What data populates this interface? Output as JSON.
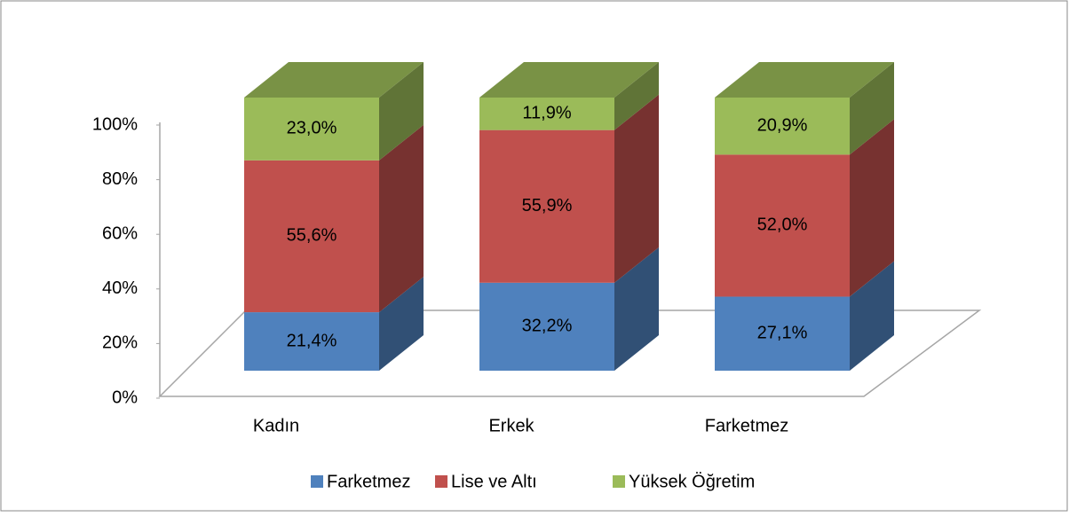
{
  "chart_data": {
    "type": "bar3d_stacked",
    "categories": [
      "Kadın",
      "Erkek",
      "Farketmez"
    ],
    "series": [
      {
        "name": "Farketmez",
        "color": "#4f81bd",
        "values": [
          21.4,
          32.2,
          27.1
        ],
        "value_labels": [
          "21,4%",
          "32,2%",
          "27,1%"
        ]
      },
      {
        "name": "Lise ve Altı",
        "color": "#c0504d",
        "values": [
          55.6,
          55.9,
          52.0
        ],
        "value_labels": [
          "55,6%",
          "55,9%",
          "52,0%"
        ]
      },
      {
        "name": "Yüksek Öğretim",
        "color": "#9bbb59",
        "values": [
          23.0,
          11.9,
          20.9
        ],
        "value_labels": [
          "23,0%",
          "11,9%",
          "20,9%"
        ]
      }
    ],
    "ylim": [
      0,
      100
    ],
    "yticks": [
      {
        "value": 0,
        "label": "0%"
      },
      {
        "value": 20,
        "label": "20%"
      },
      {
        "value": 40,
        "label": "40%"
      },
      {
        "value": 60,
        "label": "60%"
      },
      {
        "value": 80,
        "label": "80%"
      },
      {
        "value": 100,
        "label": "100%"
      }
    ],
    "legend": "bottom"
  }
}
